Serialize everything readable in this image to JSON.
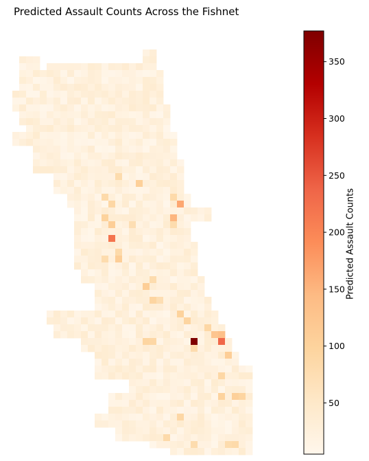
{
  "chart_data": {
    "type": "heatmap",
    "title": "Predicted Assault Counts Across the Fishnet",
    "colorbar": {
      "label": "Predicted Assault Counts",
      "colormap": "OrRd",
      "range": [
        5,
        377
      ],
      "ticks": [
        50,
        100,
        150,
        200,
        250,
        300,
        350
      ]
    },
    "grid": {
      "columns": 35,
      "row_spans": [
        [
          [
            19,
            20
          ]
        ],
        [
          [
            1,
            3
          ],
          [
            19,
            20
          ]
        ],
        [
          [
            1,
            3
          ],
          [
            5,
            20
          ]
        ],
        [
          [
            1,
            21
          ]
        ],
        [
          [
            1,
            21
          ]
        ],
        [
          [
            1,
            21
          ]
        ],
        [
          [
            0,
            21
          ]
        ],
        [
          [
            0,
            21
          ]
        ],
        [
          [
            0,
            22
          ]
        ],
        [
          [
            1,
            22
          ]
        ],
        [
          [
            1,
            22
          ]
        ],
        [
          [
            2,
            22
          ]
        ],
        [
          [
            0,
            23
          ]
        ],
        [
          [
            0,
            23
          ]
        ],
        [
          [
            3,
            23
          ]
        ],
        [
          [
            3,
            23
          ]
        ],
        [
          [
            3,
            24
          ]
        ],
        [
          [
            3,
            24
          ]
        ],
        [
          [
            6,
            24
          ]
        ],
        [
          [
            6,
            24
          ]
        ],
        [
          [
            6,
            24
          ]
        ],
        [
          [
            8,
            25
          ]
        ],
        [
          [
            8,
            25
          ]
        ],
        [
          [
            9,
            25
          ],
          [
            26,
            28
          ]
        ],
        [
          [
            9,
            25
          ],
          [
            26,
            28
          ]
        ],
        [
          [
            9,
            25
          ]
        ],
        [
          [
            9,
            25
          ]
        ],
        [
          [
            9,
            25
          ]
        ],
        [
          [
            9,
            26
          ]
        ],
        [
          [
            9,
            26
          ]
        ],
        [
          [
            9,
            26
          ]
        ],
        [
          [
            9,
            26
          ]
        ],
        [
          [
            10,
            26
          ]
        ],
        [
          [
            10,
            27
          ]
        ],
        [
          [
            12,
            27
          ]
        ],
        [
          [
            12,
            27
          ]
        ],
        [
          [
            12,
            28
          ]
        ],
        [
          [
            12,
            28
          ]
        ],
        [
          [
            5,
            29
          ]
        ],
        [
          [
            5,
            29
          ]
        ],
        [
          [
            6,
            30
          ]
        ],
        [
          [
            6,
            30
          ]
        ],
        [
          [
            10,
            31
          ]
        ],
        [
          [
            10,
            31
          ]
        ],
        [
          [
            12,
            32
          ]
        ],
        [
          [
            12,
            32
          ]
        ],
        [
          [
            12,
            34
          ]
        ],
        [
          [
            12,
            34
          ]
        ],
        [
          [
            17,
            34
          ]
        ],
        [
          [
            17,
            34
          ]
        ],
        [
          [
            14,
            34
          ]
        ],
        [
          [
            14,
            34
          ]
        ],
        [
          [
            14,
            34
          ]
        ],
        [
          [
            12,
            34
          ]
        ],
        [
          [
            12,
            34
          ]
        ],
        [
          [
            15,
            34
          ]
        ],
        [
          [
            15,
            34
          ]
        ],
        [
          [
            20,
            34
          ]
        ],
        [
          [
            23,
            34
          ]
        ]
      ],
      "hotspots": [
        {
          "col": 26,
          "row": 42,
          "value": 377
        },
        {
          "col": 30,
          "row": 42,
          "value": 235
        },
        {
          "col": 14,
          "row": 27,
          "value": 220
        },
        {
          "col": 24,
          "row": 22,
          "value": 165
        },
        {
          "col": 23,
          "row": 24,
          "value": 150
        },
        {
          "col": 30,
          "row": 41,
          "value": 135
        },
        {
          "col": 29,
          "row": 41,
          "value": 125
        },
        {
          "col": 14,
          "row": 25,
          "value": 110
        },
        {
          "col": 15,
          "row": 30,
          "value": 110
        },
        {
          "col": 13,
          "row": 24,
          "value": 100
        },
        {
          "col": 18,
          "row": 19,
          "value": 105
        },
        {
          "col": 19,
          "row": 34,
          "value": 110
        },
        {
          "col": 20,
          "row": 36,
          "value": 95
        },
        {
          "col": 24,
          "row": 38,
          "value": 100
        },
        {
          "col": 25,
          "row": 39,
          "value": 95
        },
        {
          "col": 28,
          "row": 40,
          "value": 90
        },
        {
          "col": 31,
          "row": 44,
          "value": 110
        },
        {
          "col": 30,
          "row": 47,
          "value": 90
        },
        {
          "col": 30,
          "row": 50,
          "value": 100
        },
        {
          "col": 32,
          "row": 50,
          "value": 105
        },
        {
          "col": 33,
          "row": 50,
          "value": 95
        },
        {
          "col": 19,
          "row": 42,
          "value": 95
        },
        {
          "col": 20,
          "row": 42,
          "value": 90
        },
        {
          "col": 26,
          "row": 43,
          "value": 80
        },
        {
          "col": 24,
          "row": 53,
          "value": 90
        },
        {
          "col": 22,
          "row": 56,
          "value": 85
        },
        {
          "col": 26,
          "row": 57,
          "value": 80
        },
        {
          "col": 32,
          "row": 57,
          "value": 85
        },
        {
          "col": 31,
          "row": 57,
          "value": 80
        },
        {
          "col": 14,
          "row": 22,
          "value": 90
        },
        {
          "col": 13,
          "row": 21,
          "value": 85
        },
        {
          "col": 13,
          "row": 30,
          "value": 80
        },
        {
          "col": 23,
          "row": 21,
          "value": 85
        },
        {
          "col": 23,
          "row": 25,
          "value": 80
        },
        {
          "col": 17,
          "row": 25,
          "value": 75
        },
        {
          "col": 20,
          "row": 33,
          "value": 80
        },
        {
          "col": 21,
          "row": 36,
          "value": 75
        },
        {
          "col": 15,
          "row": 18,
          "value": 80
        },
        {
          "col": 15,
          "row": 29,
          "value": 85
        }
      ]
    }
  }
}
